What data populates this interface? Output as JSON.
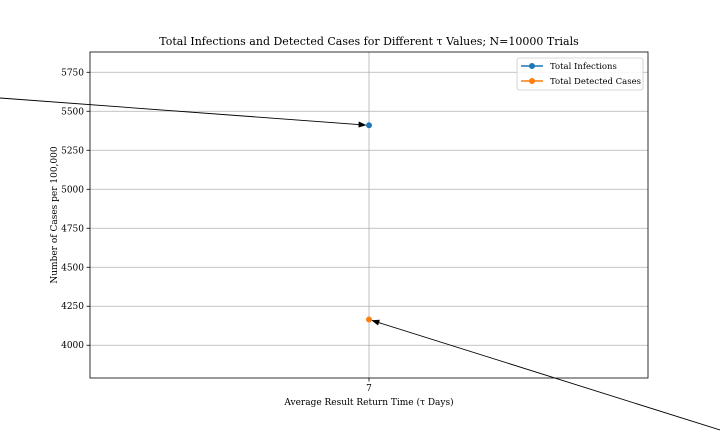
{
  "chart_data": {
    "type": "line",
    "title": "Total Infections and Detected Cases for Different τ Values; N=10000 Trials",
    "xlabel": "Average Result Return Time (τ Days)",
    "ylabel": "Number of Cases per 100,000",
    "categories": [
      "7"
    ],
    "x": [
      7
    ],
    "ylim": [
      3790,
      5880
    ],
    "yticks": [
      4000,
      4250,
      4500,
      4750,
      5000,
      5250,
      5500,
      5750
    ],
    "grid": true,
    "legend_position": "top-right",
    "series": [
      {
        "name": "Total Infections",
        "values": [
          5410
        ],
        "color": "#1f77b4"
      },
      {
        "name": "Total Detected Cases",
        "values": [
          4165
        ],
        "color": "#ff7f0e"
      }
    ],
    "annotations": [
      {
        "target_series": 0,
        "target_x": 7,
        "description": "arrow pointing to Total Infections point"
      },
      {
        "target_series": 1,
        "target_x": 7,
        "description": "arrow pointing to Total Detected Cases point"
      }
    ]
  }
}
